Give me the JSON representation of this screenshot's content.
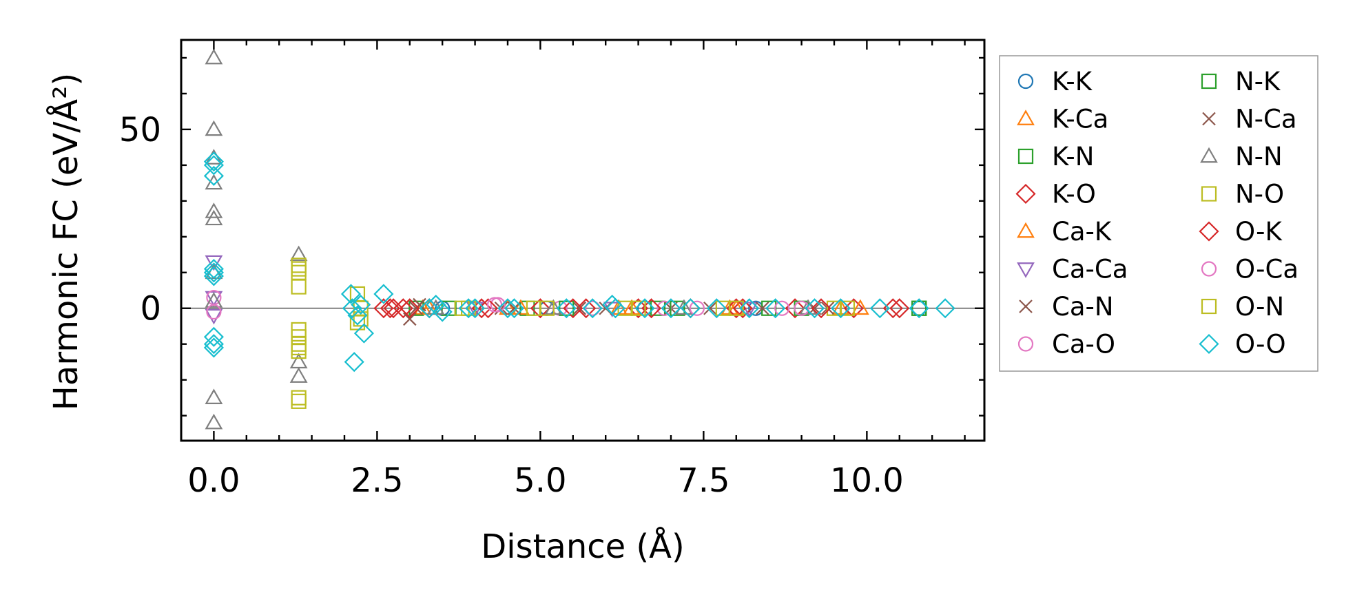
{
  "chart_data": {
    "type": "scatter",
    "title": "",
    "xlabel": "Distance (Å)",
    "ylabel": "Harmonic FC (eV/Å²)",
    "xlim": [
      -0.5,
      11.8
    ],
    "ylim": [
      -37,
      75
    ],
    "x_ticks": [
      0.0,
      2.5,
      5.0,
      7.5,
      10.0
    ],
    "x_tick_labels": [
      "0.0",
      "2.5",
      "5.0",
      "7.5",
      "10.0"
    ],
    "y_ticks": [
      0,
      50
    ],
    "y_tick_labels": [
      "0",
      "50"
    ],
    "zero_line": true,
    "grid": false,
    "legend_placement": "outside-right",
    "series": [
      {
        "name": "K-K",
        "marker": "circle",
        "color": "#1f77b4",
        "x": [
          3.5,
          5.1,
          6.6,
          8.3,
          10.8
        ],
        "y": [
          0,
          0,
          0,
          0,
          0
        ]
      },
      {
        "name": "K-Ca",
        "marker": "triangle-up",
        "color": "#ff7f0e",
        "x": [
          3.2,
          4.5,
          6.2,
          7.9,
          9.6
        ],
        "y": [
          0,
          0,
          0,
          0,
          0
        ]
      },
      {
        "name": "K-N",
        "marker": "square",
        "color": "#2ca02c",
        "x": [
          3.1,
          4.8,
          6.8,
          8.5,
          10.8
        ],
        "y": [
          0,
          0,
          0,
          0,
          0
        ]
      },
      {
        "name": "K-O",
        "marker": "diamond",
        "color": "#d62728",
        "x": [
          2.6,
          2.75,
          2.9,
          3.3,
          4.1,
          5.0,
          5.7,
          6.5,
          7.3,
          8.1,
          8.9,
          9.8,
          10.5
        ],
        "y": [
          0,
          0,
          0,
          0,
          0,
          0,
          0,
          0,
          0,
          0,
          0,
          0,
          0
        ]
      },
      {
        "name": "Ca-K",
        "marker": "triangle-up",
        "color": "#ff7f0e",
        "x": [
          3.3,
          4.7,
          6.4,
          8.0,
          9.9
        ],
        "y": [
          0,
          0,
          0,
          0,
          0
        ]
      },
      {
        "name": "Ca-Ca",
        "marker": "triangle-down",
        "color": "#9467bd",
        "x": [
          0.0,
          0.0,
          0.0,
          4.0,
          6.1,
          8.2
        ],
        "y": [
          13,
          3,
          -2,
          0,
          0,
          0
        ]
      },
      {
        "name": "Ca-N",
        "marker": "x",
        "color": "#8c564b",
        "x": [
          3.0,
          3.15,
          4.4,
          5.6,
          7.0,
          8.4,
          9.4
        ],
        "y": [
          -3,
          1,
          0,
          0,
          0,
          0,
          0
        ]
      },
      {
        "name": "Ca-O",
        "marker": "circle",
        "color": "#e377c2",
        "x": [
          0.0,
          4.35,
          5.3,
          6.9,
          8.7
        ],
        "y": [
          3,
          1,
          0,
          0,
          0
        ]
      },
      {
        "name": "N-K",
        "marker": "square",
        "color": "#2ca02c",
        "x": [
          3.6,
          5.4,
          7.1,
          9.0,
          10.8
        ],
        "y": [
          0,
          0,
          0,
          0,
          0
        ]
      },
      {
        "name": "N-Ca",
        "marker": "x",
        "color": "#8c564b",
        "x": [
          3.1,
          4.6,
          6.0,
          7.6,
          9.2
        ],
        "y": [
          0,
          0,
          0,
          0,
          0
        ]
      },
      {
        "name": "N-N",
        "marker": "triangle-up",
        "color": "#7f7f7f",
        "x": [
          0.0,
          0.0,
          0.0,
          0.0,
          0.0,
          0.0,
          0.0,
          0.0,
          0.0,
          0.0,
          1.3,
          1.3,
          1.3,
          3.4,
          5.2,
          7.2,
          9.1
        ],
        "y": [
          70,
          50,
          42,
          35,
          27,
          25,
          10,
          -25,
          -32,
          2,
          15,
          -15,
          -19,
          0,
          0,
          0,
          0
        ]
      },
      {
        "name": "N-O",
        "marker": "square",
        "color": "#bcbd22",
        "x": [
          1.3,
          1.3,
          1.3,
          1.3,
          1.3,
          1.3,
          1.3,
          1.3,
          2.2,
          2.25,
          2.2,
          3.8,
          4.9,
          6.3,
          7.8,
          9.5
        ],
        "y": [
          12,
          10,
          6,
          -6,
          -10,
          -12,
          -25,
          -26,
          4,
          0,
          -4,
          0,
          0,
          0,
          0,
          0
        ]
      },
      {
        "name": "O-K",
        "marker": "diamond",
        "color": "#d62728",
        "x": [
          2.7,
          3.0,
          4.2,
          5.5,
          6.7,
          8.0,
          9.3,
          10.4
        ],
        "y": [
          0,
          0,
          0,
          0,
          0,
          0,
          0,
          0
        ]
      },
      {
        "name": "O-Ca",
        "marker": "circle",
        "color": "#e377c2",
        "x": [
          0.0,
          4.3,
          5.8,
          7.4,
          9.0
        ],
        "y": [
          -1,
          1,
          0,
          0,
          0
        ]
      },
      {
        "name": "O-N",
        "marker": "square",
        "color": "#bcbd22",
        "x": [
          1.3,
          1.3,
          1.3,
          2.25,
          3.9,
          5.1,
          6.5,
          8.0,
          9.7
        ],
        "y": [
          11,
          -8,
          -11,
          -3,
          0,
          0,
          0,
          0,
          0
        ]
      },
      {
        "name": "O-O",
        "marker": "diamond",
        "color": "#17becf",
        "x": [
          0.0,
          0.0,
          0.0,
          0.0,
          0.0,
          0.0,
          0.0,
          0.0,
          0.0,
          2.1,
          2.12,
          2.15,
          2.3,
          2.25,
          2.2,
          2.6,
          3.3,
          3.4,
          3.5,
          3.9,
          4.0,
          4.5,
          4.6,
          5.4,
          5.8,
          6.1,
          6.15,
          6.6,
          7.0,
          7.3,
          7.7,
          8.2,
          8.6,
          9.2,
          9.6,
          10.2,
          10.8,
          11.2
        ],
        "y": [
          41,
          40,
          37,
          11,
          10,
          9,
          -8,
          -10,
          -11,
          4,
          0,
          -15,
          -7,
          1,
          -2,
          4,
          0,
          1,
          -1,
          0,
          0,
          0,
          0,
          0,
          0,
          1,
          0,
          0,
          0,
          0,
          0,
          0,
          0,
          0,
          0,
          0,
          0,
          0
        ]
      }
    ]
  }
}
